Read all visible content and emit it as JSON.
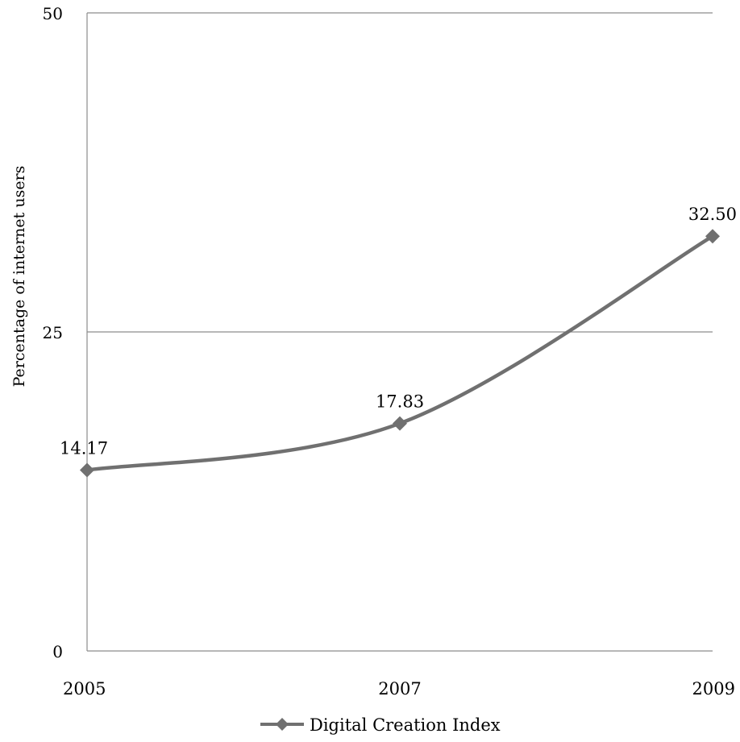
{
  "chart_data": {
    "type": "line",
    "title": "",
    "xlabel": "",
    "ylabel": "Percentage of internet users",
    "categories": [
      "2005",
      "2007",
      "2009"
    ],
    "series": [
      {
        "name": "Digital Creation Index",
        "values": [
          14.17,
          17.83,
          32.5
        ],
        "data_labels": [
          "14.17",
          "17.83",
          "32.50"
        ],
        "color": "#707070",
        "marker": "diamond",
        "smooth": true
      }
    ],
    "ylim": [
      0,
      50
    ],
    "yticks": [
      0,
      25,
      50
    ],
    "ytick_labels": [
      "0",
      "25",
      "50"
    ],
    "grid": true,
    "legend": "bottom"
  }
}
